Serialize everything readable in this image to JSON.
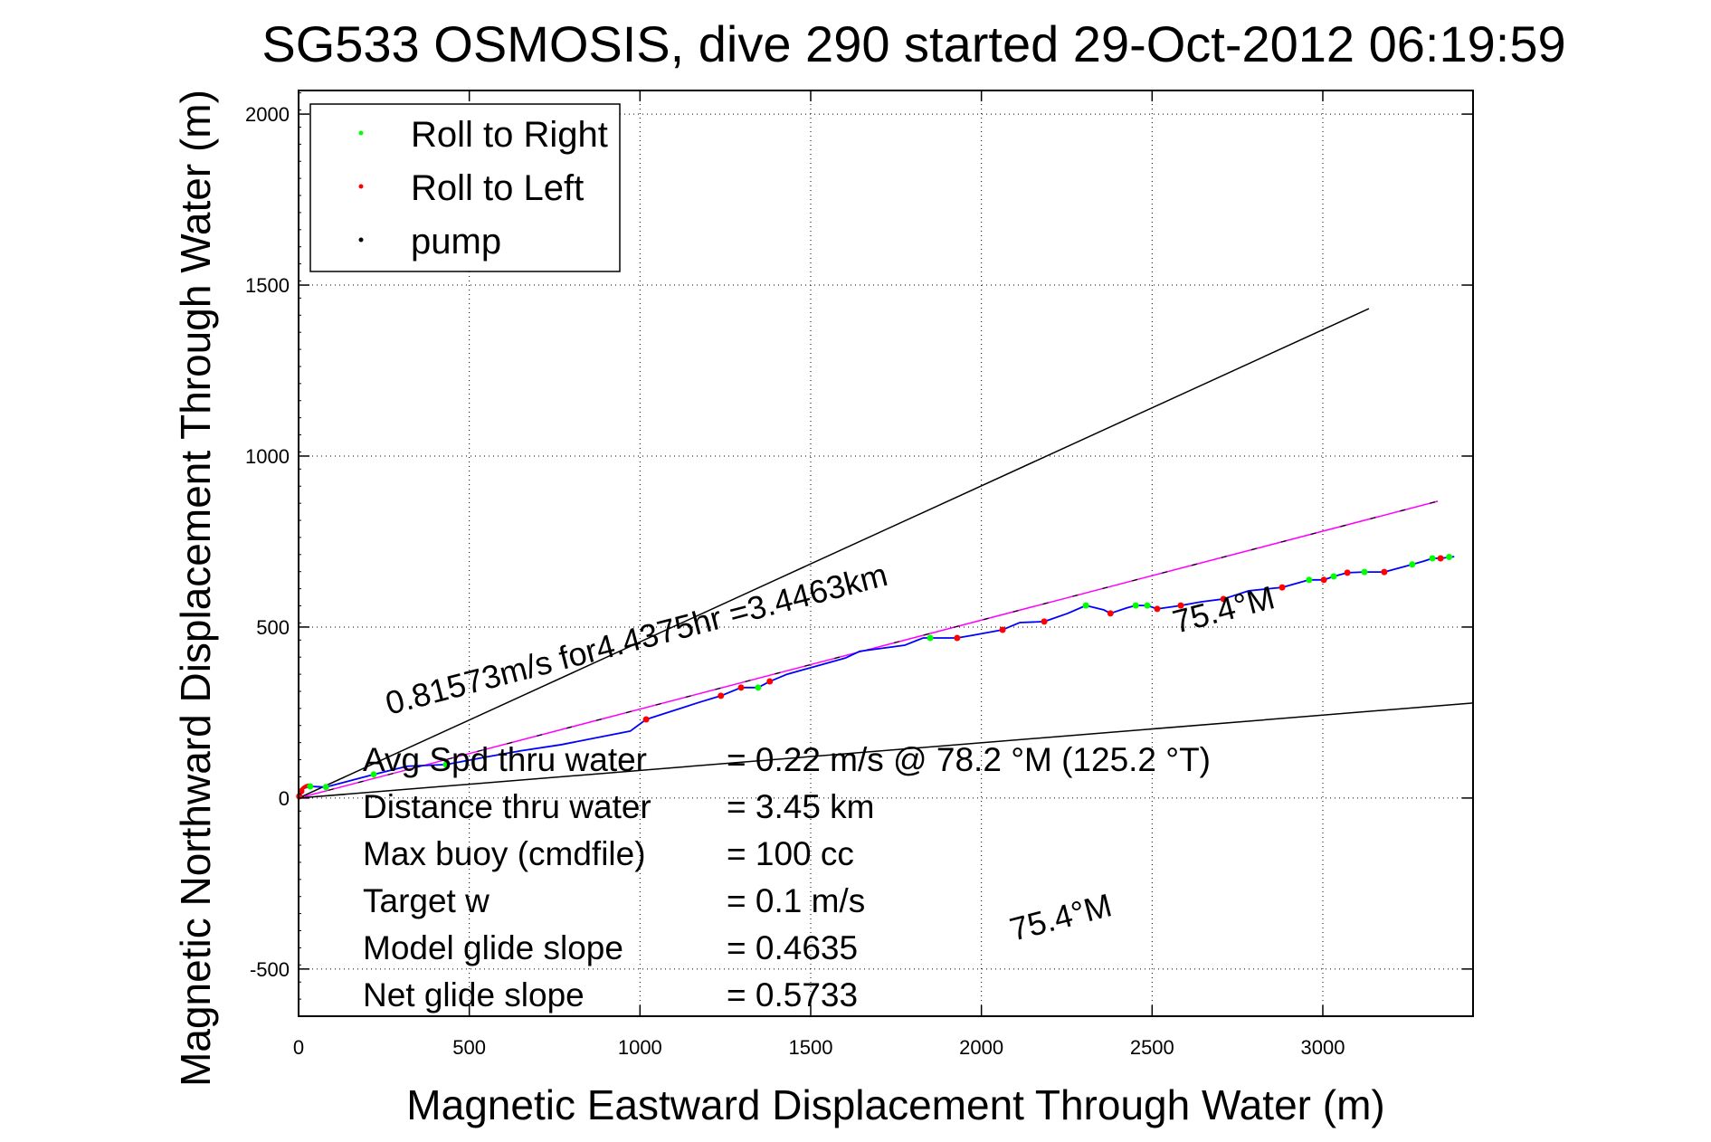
{
  "chart_data": {
    "type": "line",
    "title": "SG533 OSMOSIS, dive 290 started 29-Oct-2012 06:19:59",
    "xlabel": "Magnetic Eastward Displacement Through Water (m)",
    "ylabel": "Magnetic Northward Displacement Through Water (m)",
    "xlim": [
      0,
      3440
    ],
    "ylim": [
      -638,
      2069
    ],
    "grid": true,
    "xticks": [
      0,
      500,
      1000,
      1500,
      2000,
      2500,
      3000
    ],
    "yticks": [
      -500,
      0,
      500,
      1000,
      1500,
      2000
    ],
    "legend": {
      "placement": "top-left",
      "entries": [
        {
          "label": "Roll to Right",
          "color": "#00ff00"
        },
        {
          "label": "Roll to Left",
          "color": "#ff0000"
        },
        {
          "label": "pump",
          "color": "#000000"
        }
      ]
    },
    "track": {
      "name": "displacement track",
      "color": "#0000ff",
      "x": [
        0,
        5,
        15,
        34,
        80,
        220,
        318,
        432,
        550,
        650,
        769,
        972,
        1018,
        1174,
        1237,
        1296,
        1346,
        1380,
        1431,
        1603,
        1643,
        1776,
        1829,
        1850,
        1929,
        1975,
        2062,
        2112,
        2184,
        2253,
        2306,
        2359,
        2378,
        2426,
        2452,
        2486,
        2515,
        2571,
        2584,
        2645,
        2709,
        2783,
        2881,
        2960,
        3003,
        3032,
        3072,
        3122,
        3180,
        3262,
        3297,
        3321,
        3345,
        3385
      ],
      "y": [
        0,
        15,
        28,
        34,
        32,
        69,
        93,
        98,
        120,
        138,
        156,
        196,
        230,
        280,
        299,
        323,
        323,
        341,
        362,
        410,
        429,
        447,
        468,
        468,
        468,
        476,
        492,
        513,
        516,
        540,
        563,
        550,
        540,
        556,
        563,
        563,
        553,
        561,
        563,
        574,
        582,
        606,
        616,
        638,
        638,
        648,
        659,
        661,
        661,
        683,
        693,
        701,
        701,
        706
      ]
    },
    "roll_right_points": {
      "color": "#00ff00",
      "x": [
        34,
        80,
        220,
        432,
        1346,
        1850,
        2306,
        2452,
        2486,
        2960,
        3032,
        3122,
        3262,
        3321,
        3370
      ],
      "y": [
        34,
        32,
        69,
        98,
        323,
        468,
        563,
        563,
        563,
        638,
        648,
        661,
        683,
        701,
        705
      ]
    },
    "roll_left_points": {
      "color": "#ff0000",
      "x": [
        2,
        8,
        1018,
        1237,
        1296,
        1380,
        1929,
        2062,
        2184,
        2378,
        2515,
        2584,
        2709,
        2881,
        3003,
        3072,
        3180,
        3345
      ],
      "y": [
        5,
        20,
        230,
        299,
        323,
        341,
        468,
        492,
        516,
        540,
        553,
        563,
        582,
        616,
        638,
        659,
        661,
        701
      ]
    },
    "reference_lines": [
      {
        "name": "upper heading bound",
        "color": "#000000",
        "x": [
          0,
          3135
        ],
        "y": [
          0,
          1431
        ]
      },
      {
        "name": "lower heading bound",
        "color": "#000000",
        "x": [
          0,
          3440
        ],
        "y": [
          0,
          278
        ]
      },
      {
        "name": "mean heading line",
        "color": "#ff00ff",
        "x": [
          0,
          3337
        ],
        "y": [
          0,
          868
        ]
      }
    ],
    "annotations": [
      {
        "text": "0.81573m/s for4.4375hr =3.4463km",
        "x": 300,
        "y": 90,
        "angle_deg": -14.6
      },
      {
        "text": "75.4°M",
        "x": 2560,
        "y": 500,
        "angle_deg": -14.6
      },
      {
        "text": "75.4°M",
        "x": 320,
        "y": -20,
        "angle_deg": -14.6
      }
    ],
    "info_table": [
      {
        "label": "Avg Spd thru water",
        "value": "=  0.22 m/s @  78.2 °M (125.2 °T)"
      },
      {
        "label": "Distance thru water",
        "value": "=  3.45 km"
      },
      {
        "label": "Max buoy (cmdfile)",
        "value": "= 100 cc"
      },
      {
        "label": "Target w",
        "value": "= 0.1 m/s"
      },
      {
        "label": "Model glide slope",
        "value": "= 0.4635"
      },
      {
        "label": "Net glide slope",
        "value": "= 0.5733"
      }
    ]
  }
}
